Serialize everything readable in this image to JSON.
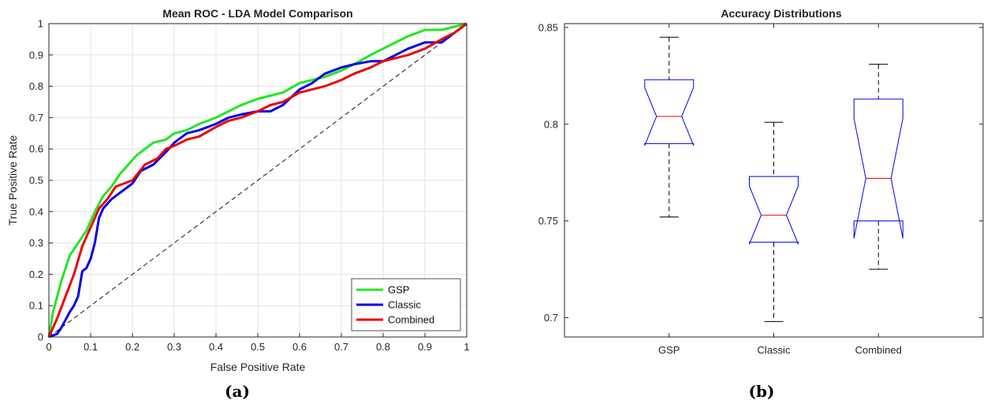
{
  "chart_data": [
    {
      "type": "line",
      "panel_label": "(a)",
      "title": "Mean ROC - LDA Model Comparison",
      "xlabel": "False Positive Rate",
      "ylabel": "True Positive Rate",
      "xlim": [
        0,
        1
      ],
      "ylim": [
        0,
        1
      ],
      "xticks": [
        "0",
        "0.1",
        "0.2",
        "0.3",
        "0.4",
        "0.5",
        "0.6",
        "0.7",
        "0.8",
        "0.9",
        "1"
      ],
      "yticks": [
        "0",
        "0.1",
        "0.2",
        "0.3",
        "0.4",
        "0.5",
        "0.6",
        "0.7",
        "0.8",
        "0.9",
        "1"
      ],
      "grid": true,
      "legend_position": "bottom-right",
      "diagonal_reference": true,
      "series": [
        {
          "name": "GSP",
          "color": "#22e622",
          "x": [
            0,
            0.01,
            0.02,
            0.03,
            0.05,
            0.07,
            0.09,
            0.11,
            0.13,
            0.15,
            0.17,
            0.19,
            0.21,
            0.23,
            0.25,
            0.28,
            0.3,
            0.33,
            0.36,
            0.4,
            0.43,
            0.46,
            0.5,
            0.53,
            0.56,
            0.6,
            0.63,
            0.66,
            0.7,
            0.73,
            0.77,
            0.8,
            0.83,
            0.86,
            0.9,
            0.94,
            0.97,
            1
          ],
          "y": [
            0,
            0.08,
            0.13,
            0.18,
            0.26,
            0.3,
            0.34,
            0.4,
            0.45,
            0.48,
            0.52,
            0.55,
            0.58,
            0.6,
            0.62,
            0.63,
            0.65,
            0.66,
            0.68,
            0.7,
            0.72,
            0.74,
            0.76,
            0.77,
            0.78,
            0.81,
            0.82,
            0.83,
            0.85,
            0.87,
            0.9,
            0.92,
            0.94,
            0.96,
            0.98,
            0.98,
            0.99,
            1
          ]
        },
        {
          "name": "Classic",
          "color": "#0000ee",
          "x": [
            0,
            0.02,
            0.03,
            0.05,
            0.06,
            0.07,
            0.08,
            0.09,
            0.1,
            0.11,
            0.12,
            0.13,
            0.15,
            0.17,
            0.2,
            0.22,
            0.25,
            0.28,
            0.3,
            0.33,
            0.36,
            0.4,
            0.43,
            0.46,
            0.5,
            0.53,
            0.56,
            0.6,
            0.63,
            0.66,
            0.7,
            0.73,
            0.77,
            0.8,
            0.83,
            0.86,
            0.9,
            0.94,
            0.97,
            1
          ],
          "y": [
            0,
            0.01,
            0.03,
            0.08,
            0.1,
            0.13,
            0.21,
            0.22,
            0.25,
            0.3,
            0.38,
            0.41,
            0.44,
            0.46,
            0.49,
            0.53,
            0.55,
            0.59,
            0.62,
            0.65,
            0.66,
            0.68,
            0.7,
            0.71,
            0.72,
            0.72,
            0.74,
            0.79,
            0.81,
            0.84,
            0.86,
            0.87,
            0.88,
            0.88,
            0.9,
            0.92,
            0.94,
            0.94,
            0.97,
            1
          ]
        },
        {
          "name": "Combined",
          "color": "#ee0000",
          "x": [
            0,
            0.02,
            0.04,
            0.06,
            0.08,
            0.1,
            0.12,
            0.14,
            0.16,
            0.18,
            0.2,
            0.23,
            0.26,
            0.28,
            0.3,
            0.33,
            0.36,
            0.4,
            0.43,
            0.46,
            0.5,
            0.53,
            0.56,
            0.6,
            0.63,
            0.66,
            0.7,
            0.73,
            0.77,
            0.8,
            0.83,
            0.86,
            0.9,
            0.94,
            0.97,
            1
          ],
          "y": [
            0,
            0.06,
            0.13,
            0.2,
            0.29,
            0.35,
            0.41,
            0.44,
            0.48,
            0.49,
            0.5,
            0.55,
            0.57,
            0.6,
            0.61,
            0.63,
            0.64,
            0.67,
            0.69,
            0.7,
            0.72,
            0.74,
            0.75,
            0.78,
            0.79,
            0.8,
            0.82,
            0.84,
            0.86,
            0.88,
            0.89,
            0.9,
            0.92,
            0.95,
            0.97,
            1
          ]
        }
      ]
    },
    {
      "type": "boxplot",
      "panel_label": "(b)",
      "title": "Accuracy Distributions",
      "xlabel": "",
      "ylabel": "",
      "categories": [
        "GSP",
        "Classic",
        "Combined"
      ],
      "ylim": [
        0.69,
        0.852
      ],
      "yticks": [
        "0.7",
        "0.75",
        "0.8",
        "0.85"
      ],
      "notched": true,
      "box_color": "#0000ee",
      "median_color": "#ee0000",
      "whisker_color": "#000000",
      "boxes": [
        {
          "category": "GSP",
          "min": 0.752,
          "q1": 0.79,
          "median": 0.804,
          "q3": 0.823,
          "max": 0.845,
          "notch_low": 0.789,
          "notch_high": 0.819
        },
        {
          "category": "Classic",
          "min": 0.698,
          "q1": 0.739,
          "median": 0.753,
          "q3": 0.773,
          "max": 0.801,
          "notch_low": 0.738,
          "notch_high": 0.768
        },
        {
          "category": "Combined",
          "min": 0.725,
          "q1": 0.75,
          "median": 0.772,
          "q3": 0.813,
          "max": 0.831,
          "notch_low": 0.741,
          "notch_high": 0.803
        }
      ]
    }
  ]
}
